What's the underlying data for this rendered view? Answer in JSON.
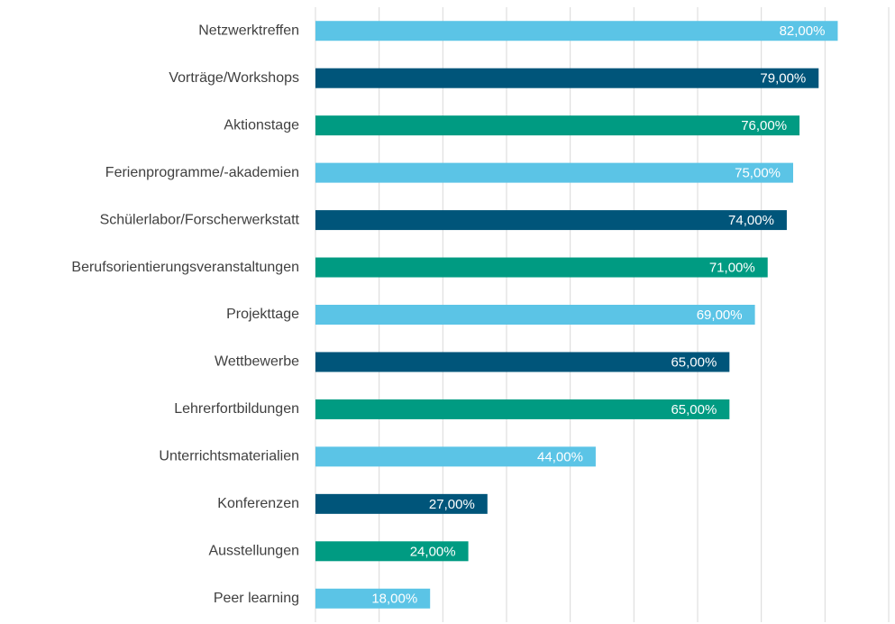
{
  "chart_data": {
    "type": "bar",
    "orientation": "horizontal",
    "categories": [
      "Netzwerktreffen",
      "Vorträge/Workshops",
      "Aktionstage",
      "Ferienprogramme/-akademien",
      "Schülerlabor/Forscherwerkstatt",
      "Berufsorientierungsveranstaltungen",
      "Projekttage",
      "Wettbewerbe",
      "Lehrerfortbildungen",
      "Unterrichtsmaterialien",
      "Konferenzen",
      "Ausstellungen",
      "Peer learning"
    ],
    "values": [
      82,
      79,
      76,
      75,
      74,
      71,
      69,
      65,
      65,
      44,
      27,
      24,
      18
    ],
    "value_labels": [
      "82,00%",
      "79,00%",
      "76,00%",
      "75,00%",
      "74,00%",
      "71,00%",
      "69,00%",
      "65,00%",
      "65,00%",
      "44,00%",
      "27,00%",
      "24,00%",
      "18,00%"
    ],
    "colors": [
      "#5bc4e6",
      "#00557a",
      "#009b82",
      "#5bc4e6",
      "#00557a",
      "#009b82",
      "#5bc4e6",
      "#00557a",
      "#009b82",
      "#5bc4e6",
      "#00557a",
      "#009b82",
      "#5bc4e6"
    ],
    "xlim": [
      0,
      90
    ],
    "xticks": [
      0,
      10,
      20,
      30,
      40,
      50,
      60,
      70,
      80,
      90
    ],
    "grid": true
  }
}
